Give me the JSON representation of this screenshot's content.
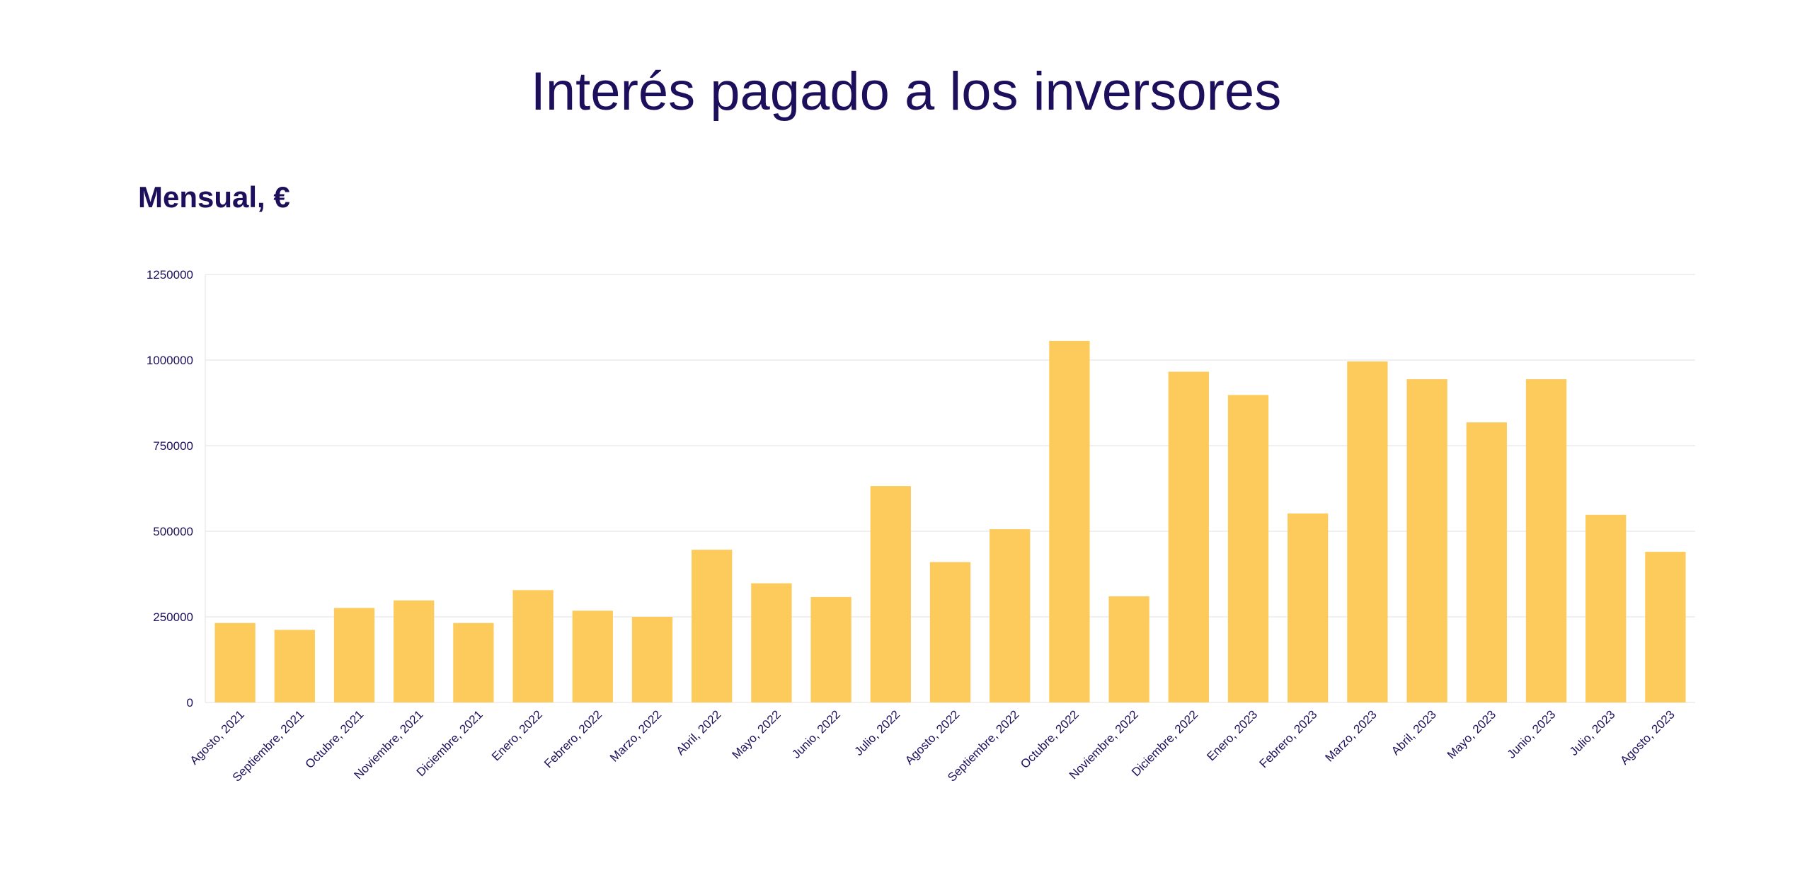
{
  "page": {
    "title": "Interés pagado a los inversores",
    "subtitle": "Mensual, €"
  },
  "colors": {
    "text": "#1e0f5c",
    "bar": "#fdca5c",
    "grid": "#ececec",
    "background": "#ffffff"
  },
  "chart_data": {
    "type": "bar",
    "title": "Interés pagado a los inversores",
    "subtitle": "Mensual, €",
    "xlabel": "",
    "ylabel": "",
    "ylim": [
      0,
      1250000
    ],
    "yticks": [
      0,
      250000,
      500000,
      750000,
      1000000,
      1250000
    ],
    "grid": true,
    "legend": "none",
    "categories": [
      "Agosto, 2021",
      "Septiembre, 2021",
      "Octubre, 2021",
      "Noviembre, 2021",
      "Diciembre, 2021",
      "Enero, 2022",
      "Febrero, 2022",
      "Marzo, 2022",
      "Abril, 2022",
      "Mayo, 2022",
      "Junio, 2022",
      "Julio, 2022",
      "Agosto, 2022",
      "Septiembre, 2022",
      "Octubre, 2022",
      "Noviembre, 2022",
      "Diciembre, 2022",
      "Enero, 2023",
      "Febrero, 2023",
      "Marzo, 2023",
      "Abril, 2023",
      "Mayo, 2023",
      "Junio, 2023",
      "Julio, 2023",
      "Agosto, 2023"
    ],
    "values": [
      232000,
      212000,
      276000,
      298000,
      232000,
      328000,
      268000,
      250000,
      446000,
      348000,
      308000,
      632000,
      410000,
      506000,
      1056000,
      310000,
      966000,
      898000,
      552000,
      996000,
      944000,
      818000,
      944000,
      548000,
      440000
    ]
  }
}
